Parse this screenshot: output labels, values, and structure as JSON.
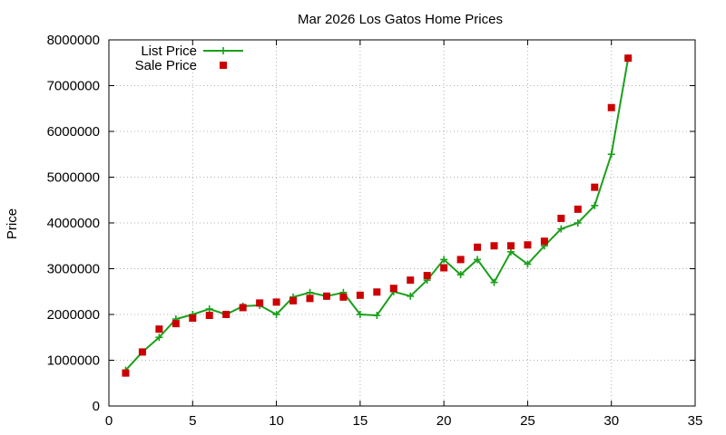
{
  "chart_data": {
    "type": "line",
    "title": "Mar 2026 Los Gatos Home Prices",
    "xlabel": "",
    "ylabel": "Price",
    "xlim": [
      0,
      35
    ],
    "ylim": [
      0,
      8000000
    ],
    "xticks": [
      0,
      5,
      10,
      15,
      20,
      25,
      30,
      35
    ],
    "yticks": [
      0,
      1000000,
      2000000,
      3000000,
      4000000,
      5000000,
      6000000,
      7000000,
      8000000
    ],
    "xtick_labels": [
      "0",
      "5",
      "10",
      "15",
      "20",
      "25",
      "30",
      "35"
    ],
    "ytick_labels": [
      "0",
      "1000000",
      "2000000",
      "3000000",
      "4000000",
      "5000000",
      "6000000",
      "7000000",
      "8000000"
    ],
    "grid": true,
    "legend_position": "top-left",
    "series": [
      {
        "name": "List Price",
        "style": "linespoints",
        "marker": "plus",
        "color": "#1aa01a",
        "x": [
          1,
          2,
          3,
          4,
          5,
          6,
          7,
          8,
          9,
          10,
          11,
          12,
          13,
          14,
          15,
          16,
          17,
          18,
          19,
          20,
          21,
          22,
          23,
          24,
          25,
          26,
          27,
          28,
          29,
          30,
          31
        ],
        "y": [
          780000,
          1180000,
          1500000,
          1900000,
          2000000,
          2120000,
          2000000,
          2180000,
          2200000,
          2000000,
          2380000,
          2480000,
          2400000,
          2480000,
          2000000,
          1980000,
          2500000,
          2400000,
          2750000,
          3200000,
          2870000,
          3200000,
          2700000,
          3370000,
          3100000,
          3500000,
          3870000,
          4000000,
          4380000,
          5500000,
          7600000
        ]
      },
      {
        "name": "Sale Price",
        "style": "points",
        "marker": "square",
        "color": "#cc0000",
        "x": [
          1,
          2,
          3,
          4,
          5,
          6,
          7,
          8,
          9,
          10,
          11,
          12,
          13,
          14,
          15,
          16,
          17,
          18,
          19,
          20,
          21,
          22,
          23,
          24,
          25,
          26,
          27,
          28,
          29,
          30,
          31
        ],
        "y": [
          720000,
          1180000,
          1680000,
          1800000,
          1920000,
          1980000,
          2000000,
          2150000,
          2250000,
          2270000,
          2300000,
          2350000,
          2400000,
          2380000,
          2420000,
          2490000,
          2570000,
          2750000,
          2850000,
          3020000,
          3200000,
          3470000,
          3500000,
          3500000,
          3520000,
          3600000,
          4100000,
          4300000,
          4780000,
          6520000,
          7600000
        ]
      }
    ]
  }
}
